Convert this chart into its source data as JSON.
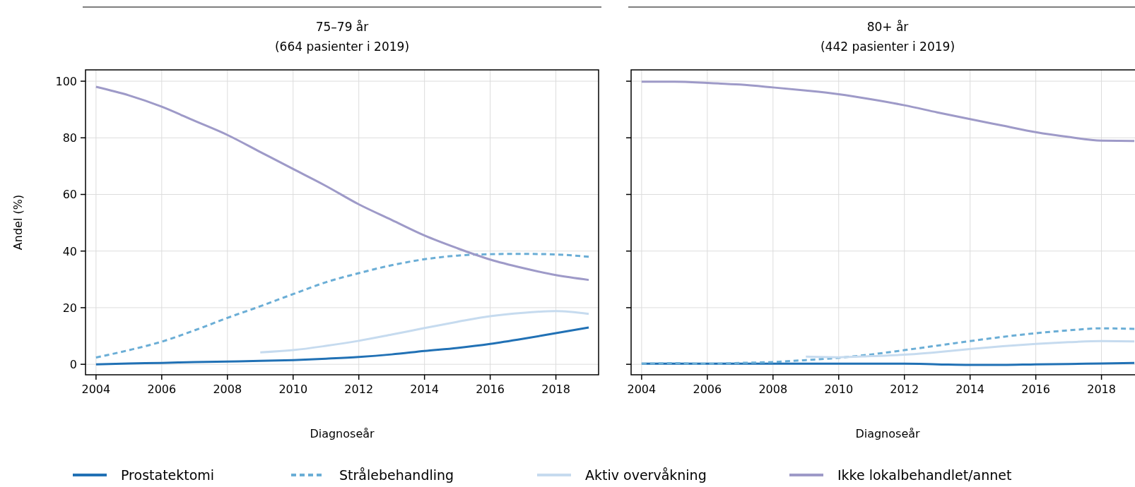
{
  "chart_data": [
    {
      "type": "line",
      "title": "75–79 år",
      "subtitle": "(664 pasienter i 2019)",
      "xlabel": "Diagnoseår",
      "ylabel": "Andel (%)",
      "x": [
        2004,
        2005,
        2006,
        2007,
        2008,
        2009,
        2010,
        2011,
        2012,
        2013,
        2014,
        2015,
        2016,
        2017,
        2018,
        2019
      ],
      "xlim": [
        2003.68,
        2019.3
      ],
      "xticks": [
        2004,
        2006,
        2008,
        2010,
        2012,
        2014,
        2016,
        2018
      ],
      "ylim": [
        -3.7,
        104
      ],
      "yticks": [
        0,
        20,
        40,
        60,
        80,
        100
      ],
      "grid": true,
      "legend": "bottom",
      "series": [
        {
          "name": "Prostatektomi",
          "color": "#2171b5",
          "line_style": "solid",
          "values": [
            0,
            0.3,
            0.5,
            0.8,
            1,
            1.2,
            1.5,
            2,
            2.6,
            3.5,
            4.7,
            5.8,
            7.2,
            9,
            11,
            13
          ]
        },
        {
          "name": "Strålebehandling",
          "color": "#6baed6",
          "line_style": "dashed",
          "values": [
            2.4,
            5,
            8,
            12,
            16.4,
            20.5,
            24.8,
            29,
            32.2,
            35,
            37.1,
            38.4,
            38.9,
            39,
            38.8,
            38
          ]
        },
        {
          "name": "Aktiv overvåkning",
          "color": "#c6dbef",
          "line_style": "solid",
          "values": [
            null,
            null,
            null,
            null,
            null,
            4.2,
            5,
            6.5,
            8.3,
            10.5,
            12.8,
            15,
            17,
            18.2,
            18.8,
            17.8
          ]
        },
        {
          "name": "Ikke lokalbehandlet/annet",
          "color": "#9e9ac8",
          "line_style": "solid",
          "values": [
            98,
            95,
            91,
            86,
            81,
            75,
            69,
            63,
            56.5,
            51,
            45.5,
            41,
            37,
            34,
            31.5,
            29.8
          ]
        }
      ]
    },
    {
      "type": "line",
      "title": "80+ år",
      "subtitle": "(442 pasienter i 2019)",
      "xlabel": "Diagnoseår",
      "tick_labels": "x",
      "x": [
        2004,
        2005,
        2006,
        2007,
        2008,
        2009,
        2010,
        2011,
        2012,
        2013,
        2014,
        2015,
        2016,
        2017,
        2018,
        2019
      ],
      "xlim": [
        2003.68,
        2019.3
      ],
      "xticks": [
        2004,
        2006,
        2008,
        2010,
        2012,
        2014,
        2016,
        2018
      ],
      "ylim": [
        -3.7,
        104
      ],
      "yticks": [
        0,
        20,
        40,
        60,
        80,
        100
      ],
      "grid": true,
      "series": [
        {
          "color": "#2171b5",
          "line_style": "solid",
          "values": [
            0.2,
            0.2,
            0.2,
            0.2,
            0.2,
            0.2,
            0.2,
            0.2,
            0.2,
            0,
            -0.2,
            -0.2,
            0,
            0.1,
            0.3,
            0.5
          ]
        },
        {
          "color": "#6baed6",
          "line_style": "dashed",
          "values": [
            0.2,
            0.4,
            0.2,
            0.5,
            0.8,
            1.5,
            2.3,
            3.5,
            5,
            6.6,
            8.2,
            9.7,
            11,
            12,
            12.7,
            12.5
          ]
        },
        {
          "color": "#c6dbef",
          "line_style": "solid",
          "values": [
            null,
            null,
            null,
            null,
            null,
            2.7,
            2.5,
            2.9,
            3.4,
            4.3,
            5.4,
            6.4,
            7.2,
            7.8,
            8.2,
            8.1
          ]
        },
        {
          "color": "#9e9ac8",
          "line_style": "solid",
          "values": [
            99.8,
            99.8,
            99.4,
            98.8,
            97.8,
            96.7,
            95.4,
            93.6,
            91.5,
            89,
            86.6,
            84.3,
            82,
            80.3,
            79,
            78.9
          ]
        }
      ]
    }
  ]
}
